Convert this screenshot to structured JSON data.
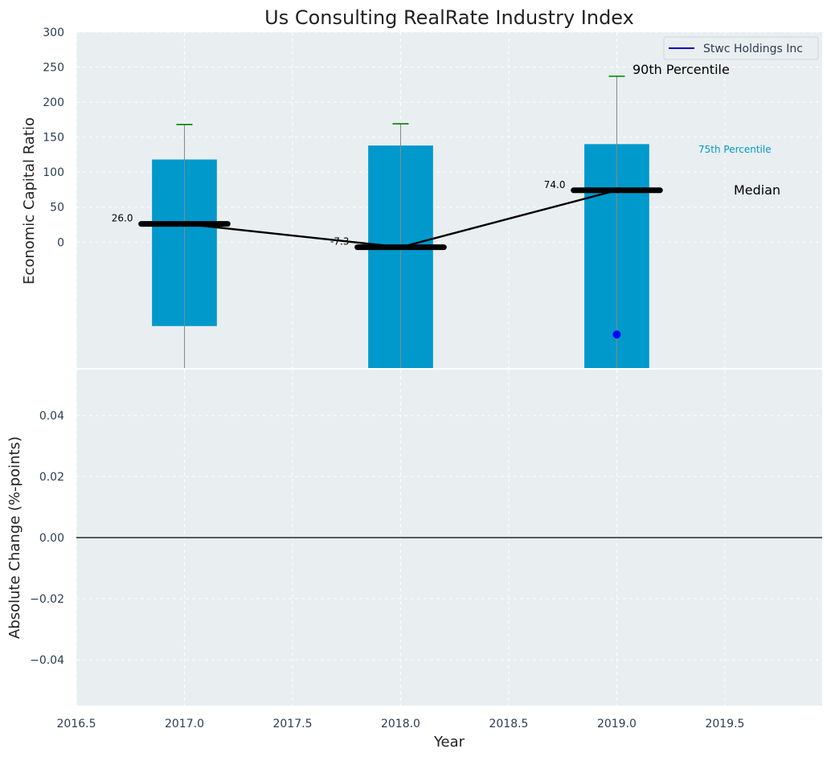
{
  "chart_data": {
    "type": "bar",
    "title": "Us Consulting RealRate Industry Index",
    "xlabel": "Year",
    "top_panel": {
      "ylabel": "Economic Capital Ratio",
      "ylim": [
        -180,
        300
      ],
      "y_ticks": [
        0,
        50,
        100,
        150,
        200,
        250,
        300
      ],
      "x": [
        2017,
        2018,
        2019
      ],
      "box_bottom": [
        -120,
        -180,
        -180
      ],
      "box_top": [
        118,
        138,
        140
      ],
      "whisker_low": [
        -180,
        -180,
        -180
      ],
      "whisker_high": [
        168,
        169,
        237
      ],
      "median": [
        26.0,
        -7.3,
        74.0
      ],
      "median_labels": [
        "26.0",
        "-7.3",
        "74.0"
      ],
      "company_points": [
        {
          "x": 2019,
          "y": -132
        }
      ],
      "legend": {
        "position": "top-right",
        "entries": [
          "Stwc Holdings Inc"
        ]
      },
      "annotations": {
        "p90": "90th Percentile",
        "p75": "75th Percentile",
        "median": "Median"
      },
      "grid": true
    },
    "bottom_panel": {
      "ylabel": "Absolute Change (%-points)",
      "ylim": [
        -0.055,
        0.055
      ],
      "y_ticks": [
        "0.04",
        "0.02",
        "0.00",
        "−0.02",
        "−0.04"
      ],
      "y_tick_values": [
        0.04,
        0.02,
        0.0,
        -0.02,
        -0.04
      ],
      "zero_line": 0.0,
      "grid": true
    },
    "x_axis": {
      "xlim": [
        2016.5,
        2019.95
      ],
      "ticks": [
        2016.5,
        2017.0,
        2017.5,
        2018.0,
        2018.5,
        2019.0,
        2019.5
      ],
      "tick_labels": [
        "2016.5",
        "2017.0",
        "2017.5",
        "2018.0",
        "2018.5",
        "2019.0",
        "2019.5"
      ]
    },
    "colors": {
      "panel_bg": "#e9eef0",
      "box": "#0099cc",
      "median": "#000000",
      "whisker_cap": "#008000",
      "company": "#0000ff",
      "legend_line": "#0000cc",
      "p75_text": "#0099cc"
    }
  }
}
